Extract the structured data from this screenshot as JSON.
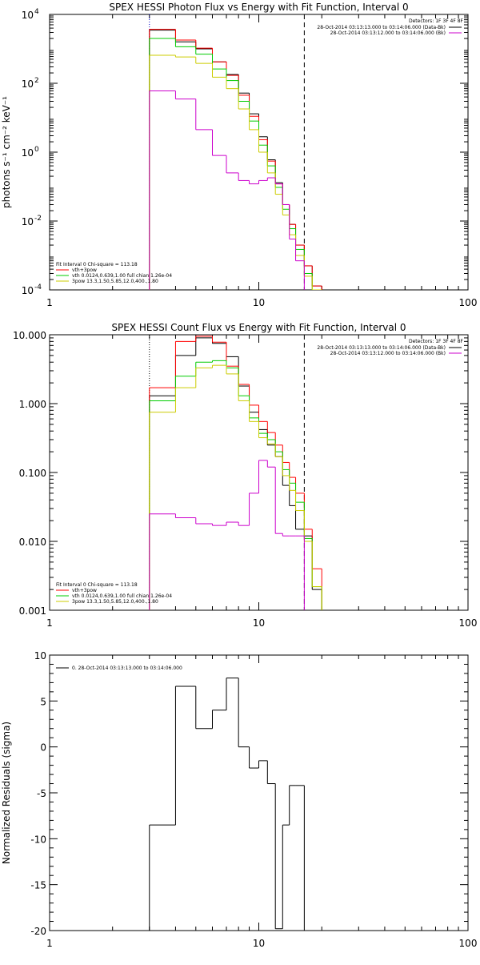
{
  "chart_data": [
    {
      "type": "line",
      "step": true,
      "title": "SPEX HESSI Photon Flux vs Energy with Fit Function, Interval 0",
      "ylabel": "photons s⁻¹ cm⁻² keV⁻¹",
      "x_scale": "log",
      "y_scale": "log",
      "xlim": [
        1,
        100
      ],
      "ylim": [
        0.0001,
        10000
      ],
      "xticks": [
        "1",
        "10",
        "100"
      ],
      "yticks": [
        {
          "base": "10",
          "exp": "4",
          "v": 10000
        },
        {
          "base": "10",
          "exp": "2",
          "v": 100
        },
        {
          "base": "10",
          "exp": "0",
          "v": 1
        },
        {
          "base": "10",
          "exp": "-2",
          "v": 0.01
        },
        {
          "base": "10",
          "exp": "-4",
          "v": 0.0001
        }
      ],
      "vlines": [
        {
          "x": 3.0,
          "style": "dotted",
          "color": "#0000cc"
        },
        {
          "x": 16.5,
          "style": "dashed",
          "color": "#000000"
        }
      ],
      "edges": [
        3.0,
        4.0,
        5.0,
        6.0,
        7.0,
        8.0,
        9.0,
        10.0,
        11.0,
        12.0,
        13.0,
        14.0,
        15.0,
        16.5,
        18.0,
        20.0,
        22.0
      ],
      "series": [
        {
          "color": "#000000",
          "values": [
            3500,
            1600,
            1000,
            420,
            180,
            52,
            13,
            2.8,
            0.6,
            0.13,
            0.03,
            0.008,
            0.002,
            0.0005,
            0.00013,
            null
          ]
        },
        {
          "color": "#ff0000",
          "values": [
            3700,
            1800,
            1050,
            420,
            170,
            45,
            11,
            2.3,
            0.55,
            0.12,
            0.03,
            0.008,
            0.002,
            0.0005,
            0.00013,
            null
          ]
        },
        {
          "color": "#00cc00",
          "values": [
            2000,
            1150,
            700,
            260,
            120,
            30,
            8.0,
            1.6,
            0.4,
            0.095,
            0.022,
            0.006,
            0.0015,
            0.0003,
            0.0001,
            null
          ]
        },
        {
          "color": "#cccc00",
          "values": [
            650,
            580,
            380,
            150,
            70,
            18,
            4.5,
            1.0,
            0.25,
            0.06,
            0.015,
            0.004,
            0.001,
            0.00025,
            0.0001,
            null
          ]
        },
        {
          "color": "#cc00cc",
          "values": [
            60,
            35,
            4.5,
            0.8,
            0.25,
            0.15,
            0.12,
            0.15,
            0.18,
            0.12,
            0.03,
            0.003,
            0.0007,
            null,
            null,
            null
          ]
        }
      ],
      "detectors": "Detectors: 1F 3F 4F 8F",
      "legend_top": [
        {
          "text": "28-Oct-2014 03:13:13.000 to 03:14:06.000 (Data-Bk)",
          "color": "#000000"
        },
        {
          "text": "28-Oct-2014 03:13:12.000 to 03:14:06.000 (Bk)",
          "color": "#cc00cc"
        }
      ],
      "legend_fit": [
        {
          "text": "Fit Interval  0   Chi-square = 113.18",
          "color": null
        },
        {
          "text": "vth+3pow",
          "color": "#ff0000"
        },
        {
          "text": "vth 0.0124,0.639,1.00  full chian 1.26e-04",
          "color": "#00cc00"
        },
        {
          "text": "3pow 13.3,1.50,5.85,12.0,400.,1.80",
          "color": "#cccc00"
        }
      ]
    },
    {
      "type": "line",
      "step": true,
      "title": "SPEX HESSI Count Flux vs Energy with Fit Function, Interval 0",
      "ylabel": "",
      "x_scale": "log",
      "y_scale": "log",
      "xlim": [
        1,
        100
      ],
      "ylim": [
        0.001,
        10
      ],
      "xticks": [
        "1",
        "10",
        "100"
      ],
      "yticks": [
        {
          "label": "10.000",
          "v": 10
        },
        {
          "label": "1.000",
          "v": 1
        },
        {
          "label": "0.100",
          "v": 0.1
        },
        {
          "label": "0.010",
          "v": 0.01
        },
        {
          "label": "0.001",
          "v": 0.001
        }
      ],
      "vlines": [
        {
          "x": 3.0,
          "style": "dotted",
          "color": "#000000"
        },
        {
          "x": 16.5,
          "style": "dashed",
          "color": "#000000"
        }
      ],
      "edges": [
        3.0,
        4.0,
        5.0,
        6.0,
        7.0,
        8.0,
        9.0,
        10.0,
        11.0,
        12.0,
        13.0,
        14.0,
        15.0,
        16.5,
        18.0,
        20.0
      ],
      "series": [
        {
          "color": "#000000",
          "values": [
            1.3,
            5.0,
            9.0,
            7.5,
            4.8,
            1.8,
            0.75,
            0.42,
            0.25,
            0.17,
            0.065,
            0.033,
            0.015,
            0.012,
            0.002
          ]
        },
        {
          "color": "#ff0000",
          "values": [
            1.7,
            8.0,
            9.5,
            7.8,
            3.5,
            1.9,
            0.95,
            0.55,
            0.38,
            0.25,
            0.14,
            0.085,
            0.05,
            0.015,
            0.004
          ]
        },
        {
          "color": "#00cc00",
          "values": [
            1.1,
            2.5,
            4.0,
            4.2,
            3.3,
            1.3,
            0.62,
            0.37,
            0.3,
            0.2,
            0.11,
            0.07,
            0.037,
            0.011,
            0.0022
          ]
        },
        {
          "color": "#cccc00",
          "values": [
            0.75,
            1.7,
            3.3,
            3.6,
            2.7,
            1.1,
            0.55,
            0.32,
            0.26,
            0.17,
            0.09,
            0.055,
            0.028,
            0.01,
            0.0022
          ]
        },
        {
          "color": "#cc00cc",
          "values": [
            0.025,
            0.022,
            0.018,
            0.017,
            0.019,
            0.017,
            0.05,
            0.15,
            0.12,
            0.013,
            0.012,
            0.012,
            0.012,
            null,
            null
          ]
        }
      ],
      "detectors": "Detectors: 1F 3F 4F 8F",
      "legend_top": [
        {
          "text": "28-Oct-2014 03:13:13.000 to 03:14:06.000 (Data-Bk)",
          "color": "#000000"
        },
        {
          "text": "28-Oct-2014 03:13:12.000 to 03:14:06.000 (Bk)",
          "color": "#cc00cc"
        }
      ],
      "legend_fit": [
        {
          "text": "Fit Interval  0   Chi-square = 113.18",
          "color": null
        },
        {
          "text": "vth+3pow",
          "color": "#ff0000"
        },
        {
          "text": "vth 0.0124,0.639,1.00  full chian 1.26e-04",
          "color": "#00cc00"
        },
        {
          "text": "3pow 13.3,1.50,5.85,12.0,400.,1.80",
          "color": "#cccc00"
        }
      ]
    },
    {
      "type": "line",
      "step": true,
      "title": "",
      "ylabel": "Normalized Residuals (sigma)",
      "x_scale": "log",
      "y_scale": "linear",
      "xlim": [
        1,
        100
      ],
      "ylim": [
        -20,
        10
      ],
      "xticks": [
        "1",
        "10",
        "100"
      ],
      "yticks": [
        {
          "label": "10",
          "v": 10
        },
        {
          "label": "5",
          "v": 5
        },
        {
          "label": "0",
          "v": 0
        },
        {
          "label": "-5",
          "v": -5
        },
        {
          "label": "-10",
          "v": -10
        },
        {
          "label": "-15",
          "v": -15
        },
        {
          "label": "-20",
          "v": -20
        }
      ],
      "vlines": [],
      "edges": [
        3.0,
        4.0,
        5.0,
        6.0,
        7.0,
        8.0,
        9.0,
        10.0,
        11.0,
        12.0,
        13.0,
        14.0,
        15.0,
        16.5
      ],
      "series": [
        {
          "color": "#000000",
          "values": [
            -8.5,
            6.6,
            2.0,
            4.0,
            7.5,
            0.0,
            -2.3,
            -1.5,
            -4.0,
            -19.8,
            -8.5,
            -4.2,
            -4.2
          ]
        }
      ],
      "legend_top": [],
      "legend_fit": [
        {
          "text": "0. 28-Oct-2014 03:13:13.000 to 03:14:06.000",
          "color": "#000000"
        }
      ]
    }
  ]
}
